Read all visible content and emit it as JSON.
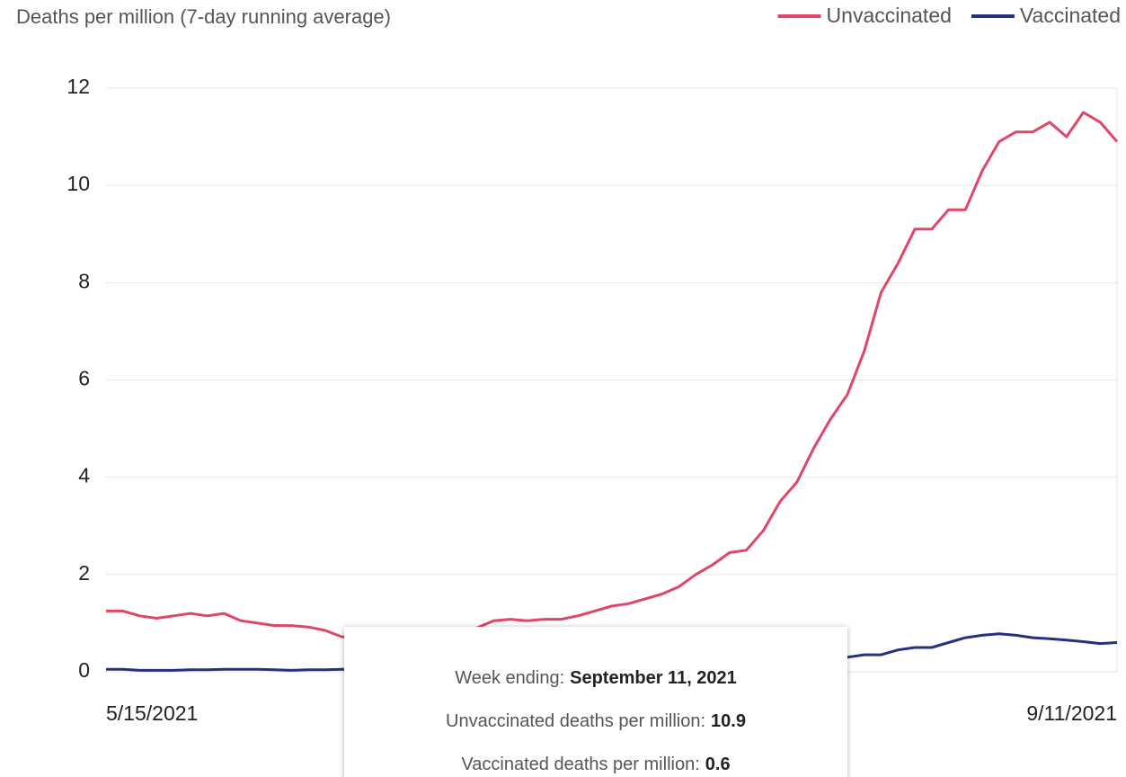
{
  "chart_data": {
    "type": "line",
    "ylabel": "Deaths per million (7-day running average)",
    "categories": [
      "5/15/2021",
      null,
      null,
      null,
      null,
      null,
      null,
      null,
      null,
      null,
      null,
      null,
      null,
      null,
      null,
      null,
      null,
      null,
      null,
      null,
      null,
      null,
      null,
      null,
      null,
      null,
      null,
      null,
      null,
      null,
      null,
      null,
      null,
      null,
      null,
      null,
      null,
      null,
      null,
      null,
      null,
      null,
      null,
      null,
      null,
      null,
      null,
      null,
      null,
      null,
      null,
      null,
      null,
      null,
      null,
      null,
      null,
      null,
      null,
      null,
      "9/11/2021"
    ],
    "series": [
      {
        "name": "Unvaccinated",
        "color": "#e0456a",
        "values": [
          1.25,
          1.25,
          1.15,
          1.1,
          1.15,
          1.2,
          1.15,
          1.2,
          1.05,
          1.0,
          0.95,
          0.95,
          0.92,
          0.85,
          0.72,
          0.7,
          0.7,
          0.72,
          0.75,
          0.78,
          0.8,
          0.85,
          0.9,
          1.05,
          1.08,
          1.05,
          1.08,
          1.08,
          1.15,
          1.25,
          1.35,
          1.4,
          1.5,
          1.6,
          1.75,
          2.0,
          2.2,
          2.45,
          2.5,
          2.9,
          3.5,
          3.9,
          4.6,
          5.2,
          5.7,
          6.6,
          7.8,
          8.4,
          9.1,
          9.1,
          9.5,
          9.5,
          10.3,
          10.9,
          11.1,
          11.1,
          11.3,
          11.0,
          11.5,
          11.3,
          10.9
        ]
      },
      {
        "name": "Vaccinated",
        "color": "#27307e",
        "values": [
          0.05,
          0.05,
          0.03,
          0.03,
          0.03,
          0.04,
          0.04,
          0.05,
          0.05,
          0.05,
          0.04,
          0.03,
          0.04,
          0.04,
          0.05,
          0.05,
          0.05,
          0.06,
          0.06,
          0.07,
          0.07,
          0.08,
          0.08,
          0.09,
          0.09,
          0.1,
          0.1,
          0.11,
          0.12,
          0.13,
          0.14,
          0.15,
          0.16,
          0.17,
          0.18,
          0.19,
          0.2,
          0.21,
          0.22,
          0.23,
          0.24,
          0.25,
          0.26,
          0.28,
          0.3,
          0.35,
          0.35,
          0.45,
          0.5,
          0.5,
          0.6,
          0.7,
          0.75,
          0.78,
          0.75,
          0.7,
          0.68,
          0.65,
          0.62,
          0.58,
          0.6
        ]
      }
    ],
    "ylim": [
      0,
      12
    ],
    "yticks": [
      0,
      2,
      4,
      6,
      8,
      10,
      12
    ],
    "grid": true,
    "legend": "top-right"
  },
  "tooltip": {
    "rows": [
      {
        "label": "Week ending:",
        "value": "September 11, 2021"
      },
      {
        "label": "Unvaccinated deaths per million:",
        "value": 10.9
      },
      {
        "label": "Vaccinated deaths per million:",
        "value": 0.6
      }
    ]
  }
}
